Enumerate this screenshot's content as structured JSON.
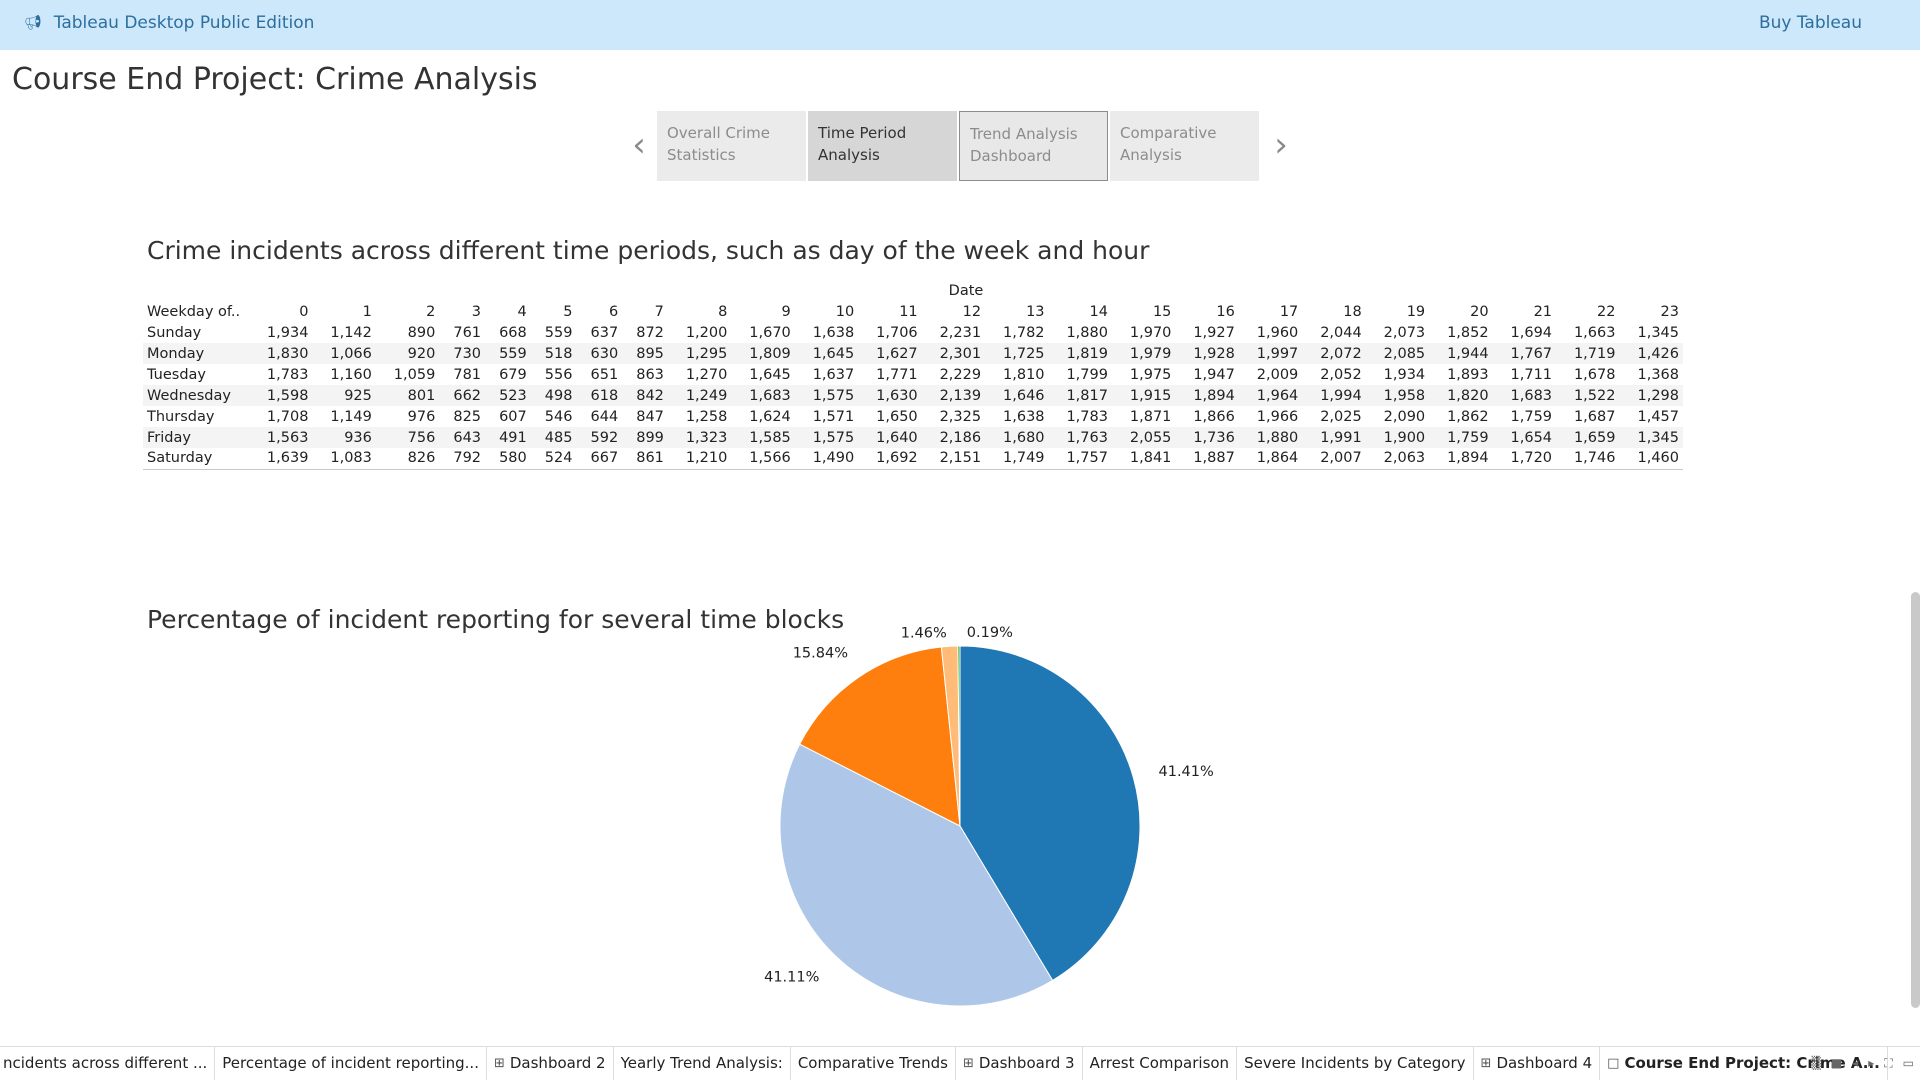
{
  "topbar": {
    "brand_icon": "megaphone-icon",
    "brand": "Tableau Desktop Public Edition",
    "buy": "Buy Tableau"
  },
  "story": {
    "title": "Course End Project: Crime Analysis",
    "points": [
      {
        "label": "Overall Crime Statistics",
        "state": "normal"
      },
      {
        "label": "Time Period Analysis",
        "state": "active"
      },
      {
        "label": "Trend Analysis Dashboard",
        "state": "hovered"
      },
      {
        "label": "Comparative Analysis",
        "state": "normal"
      }
    ],
    "prev_icon": "chevron-left-icon",
    "next_icon": "chevron-right-icon"
  },
  "crosstab": {
    "title": "Crime incidents across different time periods, such as day of the week and hour",
    "column_axis": "Date",
    "row_header": "Weekday of..",
    "columns": [
      "0",
      "1",
      "2",
      "3",
      "4",
      "5",
      "6",
      "7",
      "8",
      "9",
      "10",
      "11",
      "12",
      "13",
      "14",
      "15",
      "16",
      "17",
      "18",
      "19",
      "20",
      "21",
      "22",
      "23"
    ],
    "rows": [
      {
        "label": "Sunday",
        "values": [
          "1,934",
          "1,142",
          "890",
          "761",
          "668",
          "559",
          "637",
          "872",
          "1,200",
          "1,670",
          "1,638",
          "1,706",
          "2,231",
          "1,782",
          "1,880",
          "1,970",
          "1,927",
          "1,960",
          "2,044",
          "2,073",
          "1,852",
          "1,694",
          "1,663",
          "1,345"
        ]
      },
      {
        "label": "Monday",
        "values": [
          "1,830",
          "1,066",
          "920",
          "730",
          "559",
          "518",
          "630",
          "895",
          "1,295",
          "1,809",
          "1,645",
          "1,627",
          "2,301",
          "1,725",
          "1,819",
          "1,979",
          "1,928",
          "1,997",
          "2,072",
          "2,085",
          "1,944",
          "1,767",
          "1,719",
          "1,426"
        ]
      },
      {
        "label": "Tuesday",
        "values": [
          "1,783",
          "1,160",
          "1,059",
          "781",
          "679",
          "556",
          "651",
          "863",
          "1,270",
          "1,645",
          "1,637",
          "1,771",
          "2,229",
          "1,810",
          "1,799",
          "1,975",
          "1,947",
          "2,009",
          "2,052",
          "1,934",
          "1,893",
          "1,711",
          "1,678",
          "1,368"
        ]
      },
      {
        "label": "Wednesday",
        "values": [
          "1,598",
          "925",
          "801",
          "662",
          "523",
          "498",
          "618",
          "842",
          "1,249",
          "1,683",
          "1,575",
          "1,630",
          "2,139",
          "1,646",
          "1,817",
          "1,915",
          "1,894",
          "1,964",
          "1,994",
          "1,958",
          "1,820",
          "1,683",
          "1,522",
          "1,298"
        ]
      },
      {
        "label": "Thursday",
        "values": [
          "1,708",
          "1,149",
          "976",
          "825",
          "607",
          "546",
          "644",
          "847",
          "1,258",
          "1,624",
          "1,571",
          "1,650",
          "2,325",
          "1,638",
          "1,783",
          "1,871",
          "1,866",
          "1,966",
          "2,025",
          "2,090",
          "1,862",
          "1,759",
          "1,687",
          "1,457"
        ]
      },
      {
        "label": "Friday",
        "values": [
          "1,563",
          "936",
          "756",
          "643",
          "491",
          "485",
          "592",
          "899",
          "1,323",
          "1,585",
          "1,575",
          "1,640",
          "2,186",
          "1,680",
          "1,763",
          "2,055",
          "1,736",
          "1,880",
          "1,991",
          "1,900",
          "1,759",
          "1,654",
          "1,659",
          "1,345"
        ]
      },
      {
        "label": "Saturday",
        "values": [
          "1,639",
          "1,083",
          "826",
          "792",
          "580",
          "524",
          "667",
          "861",
          "1,210",
          "1,566",
          "1,490",
          "1,692",
          "2,151",
          "1,749",
          "1,757",
          "1,841",
          "1,887",
          "1,864",
          "2,007",
          "2,063",
          "1,894",
          "1,720",
          "1,746",
          "1,460"
        ]
      }
    ]
  },
  "chart_data": {
    "type": "pie",
    "title": "Percentage of incident reporting for several time blocks",
    "slices": [
      {
        "label": "41.41%",
        "value": 41.41,
        "color": "#1f77b4"
      },
      {
        "label": "41.11%",
        "value": 41.11,
        "color": "#aec7e8"
      },
      {
        "label": "15.84%",
        "value": 15.84,
        "color": "#ff7f0e"
      },
      {
        "label": "1.46%",
        "value": 1.46,
        "color": "#ffbb78"
      },
      {
        "label": "0.19%",
        "value": 0.19,
        "color": "#2ca02c"
      }
    ]
  },
  "tabs": [
    {
      "label": "ncidents across different ...",
      "icon": ""
    },
    {
      "label": "Percentage of incident reporting...",
      "icon": ""
    },
    {
      "label": "Dashboard 2",
      "icon": "dashboard-grid-icon"
    },
    {
      "label": "Yearly Trend Analysis:",
      "icon": ""
    },
    {
      "label": "Comparative Trends",
      "icon": ""
    },
    {
      "label": "Dashboard 3",
      "icon": "dashboard-grid-icon"
    },
    {
      "label": "Arrest Comparison",
      "icon": ""
    },
    {
      "label": "Severe Incidents by Category",
      "icon": ""
    },
    {
      "label": "Dashboard 4",
      "icon": "dashboard-grid-icon"
    },
    {
      "label": "Course End Project: Crime A...",
      "icon": "story-book-icon",
      "active": true
    }
  ],
  "bottom_controls": [
    "sheet-sorter-icon",
    "filmstrip-icon",
    "prev-sheet-icon",
    "next-sheet-icon",
    "fullscreen-icon",
    "presentation-icon"
  ]
}
